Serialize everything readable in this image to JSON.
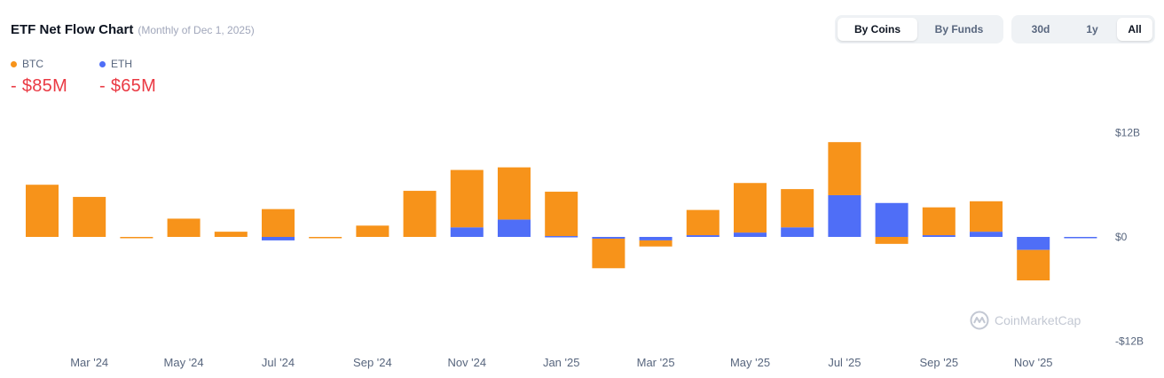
{
  "header": {
    "title": "ETF Net Flow Chart",
    "subtitle": "(Monthly of Dec 1, 2025)"
  },
  "legend": [
    {
      "name": "BTC",
      "value": "- $85M",
      "color": "#f7931a"
    },
    {
      "name": "ETH",
      "value": "- $65M",
      "color": "#4f6ef7"
    }
  ],
  "controls": {
    "group_toggle": [
      {
        "label": "By Coins",
        "active": true
      },
      {
        "label": "By Funds",
        "active": false
      }
    ],
    "range_toggle": [
      {
        "label": "30d",
        "active": false
      },
      {
        "label": "1y",
        "active": false
      },
      {
        "label": "All",
        "active": true
      }
    ]
  },
  "watermark": "CoinMarketCap",
  "chart_data": {
    "type": "bar",
    "stacked": true,
    "categories": [
      "Feb '24",
      "Mar '24",
      "Apr '24",
      "May '24",
      "Jun '24",
      "Jul '24",
      "Aug '24",
      "Sep '24",
      "Oct '24",
      "Nov '24",
      "Dec '24",
      "Jan '25",
      "Feb '25",
      "Mar '25",
      "Apr '25",
      "May '25",
      "Jun '25",
      "Jul '25",
      "Aug '25",
      "Sep '25",
      "Oct '25",
      "Nov '25",
      "Dec '25"
    ],
    "x_tick_labels": [
      "Mar '24",
      "May '24",
      "Jul '24",
      "Sep '24",
      "Nov '24",
      "Jan '25",
      "Mar '25",
      "May '25",
      "Jul '25",
      "Sep '25",
      "Nov '25"
    ],
    "series": [
      {
        "name": "BTC",
        "color": "#f7931a",
        "values": [
          6.0,
          4.6,
          -0.1,
          2.1,
          0.6,
          3.2,
          -0.1,
          1.3,
          5.3,
          6.6,
          6.0,
          5.1,
          -3.4,
          -0.7,
          2.9,
          5.7,
          4.4,
          6.1,
          -0.8,
          3.2,
          3.5,
          -3.5,
          0
        ]
      },
      {
        "name": "ETH",
        "color": "#4f6ef7",
        "values": [
          0,
          0,
          0,
          0,
          0,
          -0.4,
          0,
          0,
          0,
          1.1,
          2.0,
          0.1,
          -0.2,
          -0.4,
          0.2,
          0.5,
          1.1,
          4.8,
          3.9,
          0.2,
          0.6,
          -1.5,
          -0.1
        ]
      }
    ],
    "y_ticks": [
      {
        "value": 12,
        "label": "$12B"
      },
      {
        "value": 0,
        "label": "$0"
      },
      {
        "value": -12,
        "label": "-$12B"
      }
    ],
    "ylim": [
      -12,
      12
    ],
    "grid": false,
    "legend_position": "top-left"
  }
}
